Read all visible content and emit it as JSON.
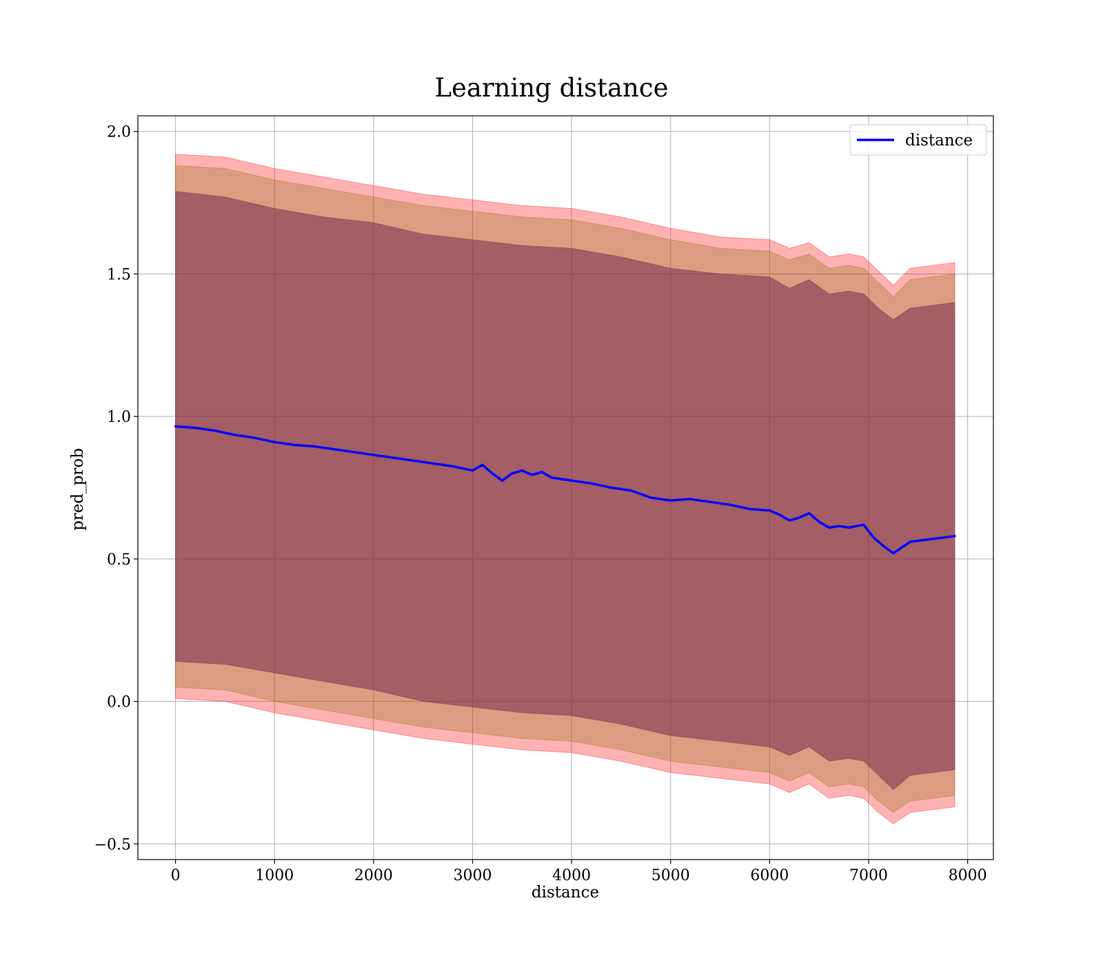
{
  "chart_data": {
    "type": "line",
    "title": "Learning distance",
    "xlabel": "distance",
    "ylabel": "pred_prob",
    "xlim": [
      -380,
      8260
    ],
    "ylim": [
      -0.555,
      2.055
    ],
    "xticks": [
      0,
      1000,
      2000,
      3000,
      4000,
      5000,
      6000,
      7000,
      8000
    ],
    "yticks": [
      -0.5,
      0.0,
      0.5,
      1.0,
      1.5,
      2.0
    ],
    "xtick_labels": [
      "0",
      "1000",
      "2000",
      "3000",
      "4000",
      "5000",
      "6000",
      "7000",
      "8000"
    ],
    "ytick_labels": [
      "−0.5",
      "0.0",
      "0.5",
      "1.0",
      "1.5",
      "2.0"
    ],
    "grid": true,
    "legend": {
      "placement": "top-right",
      "entries": [
        "distance"
      ]
    },
    "colors": {
      "line": "#0000ff",
      "band_outer": "#ff0000",
      "band_middle": "#8b6914",
      "band_inner": "#6a1f4a",
      "grid": "#b0b0b0"
    },
    "series": [
      {
        "name": "distance",
        "x": [
          0,
          200,
          400,
          600,
          800,
          1000,
          1200,
          1400,
          1600,
          1800,
          2000,
          2200,
          2400,
          2600,
          2800,
          3000,
          3100,
          3200,
          3300,
          3400,
          3500,
          3600,
          3700,
          3800,
          3900,
          4000,
          4200,
          4400,
          4600,
          4800,
          5000,
          5200,
          5400,
          5600,
          5800,
          6000,
          6100,
          6200,
          6300,
          6400,
          6500,
          6600,
          6700,
          6800,
          6950,
          7050,
          7150,
          7250,
          7420,
          7870
        ],
        "y": [
          0.965,
          0.96,
          0.95,
          0.935,
          0.925,
          0.91,
          0.9,
          0.895,
          0.885,
          0.875,
          0.865,
          0.855,
          0.845,
          0.835,
          0.825,
          0.81,
          0.83,
          0.8,
          0.775,
          0.8,
          0.81,
          0.795,
          0.805,
          0.785,
          0.78,
          0.775,
          0.765,
          0.75,
          0.74,
          0.715,
          0.705,
          0.71,
          0.7,
          0.69,
          0.675,
          0.67,
          0.655,
          0.635,
          0.645,
          0.66,
          0.63,
          0.61,
          0.615,
          0.61,
          0.62,
          0.575,
          0.545,
          0.52,
          0.56,
          0.58
        ]
      }
    ],
    "bands": [
      {
        "x": [
          0,
          500,
          1000,
          1500,
          2000,
          2500,
          3000,
          3500,
          4000,
          4500,
          5000,
          5500,
          6000,
          6200,
          6400,
          6600,
          6800,
          6950,
          7100,
          7250,
          7420,
          7870
        ],
        "upper": [
          1.92,
          1.91,
          1.87,
          1.84,
          1.81,
          1.78,
          1.76,
          1.74,
          1.73,
          1.7,
          1.66,
          1.63,
          1.62,
          1.59,
          1.61,
          1.56,
          1.57,
          1.56,
          1.51,
          1.46,
          1.52,
          1.54
        ],
        "lower": [
          0.01,
          0.0,
          -0.04,
          -0.07,
          -0.1,
          -0.13,
          -0.15,
          -0.17,
          -0.18,
          -0.21,
          -0.25,
          -0.27,
          -0.29,
          -0.32,
          -0.29,
          -0.34,
          -0.33,
          -0.34,
          -0.39,
          -0.43,
          -0.39,
          -0.37
        ]
      },
      {
        "x": [
          0,
          500,
          1000,
          1500,
          2000,
          2500,
          3000,
          3500,
          4000,
          4500,
          5000,
          5500,
          6000,
          6200,
          6400,
          6600,
          6800,
          6950,
          7100,
          7250,
          7420,
          7870
        ],
        "upper": [
          1.88,
          1.87,
          1.83,
          1.8,
          1.77,
          1.74,
          1.72,
          1.7,
          1.69,
          1.66,
          1.62,
          1.59,
          1.58,
          1.55,
          1.57,
          1.52,
          1.53,
          1.52,
          1.47,
          1.42,
          1.48,
          1.5
        ],
        "lower": [
          0.05,
          0.04,
          0.0,
          -0.03,
          -0.06,
          -0.09,
          -0.11,
          -0.13,
          -0.14,
          -0.17,
          -0.21,
          -0.23,
          -0.25,
          -0.28,
          -0.25,
          -0.3,
          -0.29,
          -0.3,
          -0.35,
          -0.39,
          -0.35,
          -0.33
        ]
      },
      {
        "x": [
          0,
          500,
          1000,
          1500,
          2000,
          2500,
          3000,
          3500,
          4000,
          4500,
          5000,
          5500,
          6000,
          6200,
          6400,
          6600,
          6800,
          6950,
          7100,
          7250,
          7420,
          7870
        ],
        "upper": [
          1.79,
          1.77,
          1.73,
          1.7,
          1.68,
          1.64,
          1.62,
          1.6,
          1.59,
          1.56,
          1.52,
          1.5,
          1.49,
          1.45,
          1.48,
          1.43,
          1.44,
          1.43,
          1.38,
          1.34,
          1.38,
          1.4
        ],
        "lower": [
          0.14,
          0.13,
          0.1,
          0.07,
          0.04,
          0.0,
          -0.02,
          -0.04,
          -0.05,
          -0.08,
          -0.12,
          -0.14,
          -0.16,
          -0.19,
          -0.16,
          -0.21,
          -0.2,
          -0.21,
          -0.26,
          -0.31,
          -0.26,
          -0.24
        ]
      }
    ]
  }
}
